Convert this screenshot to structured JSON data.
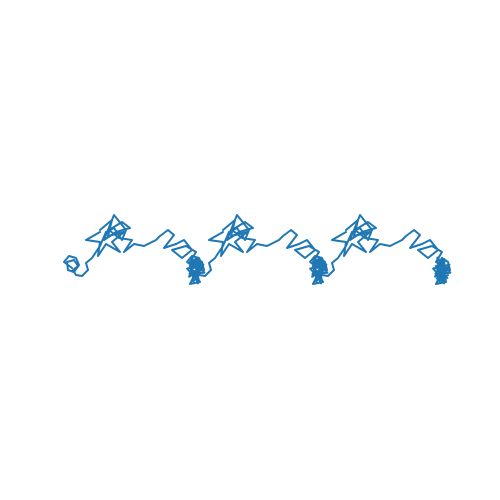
{
  "figure": {
    "background_color": "#ffffff",
    "line_color": "#1f77b4",
    "axes_visible": false,
    "pattern_repeats": 3,
    "description_text": ""
  }
}
